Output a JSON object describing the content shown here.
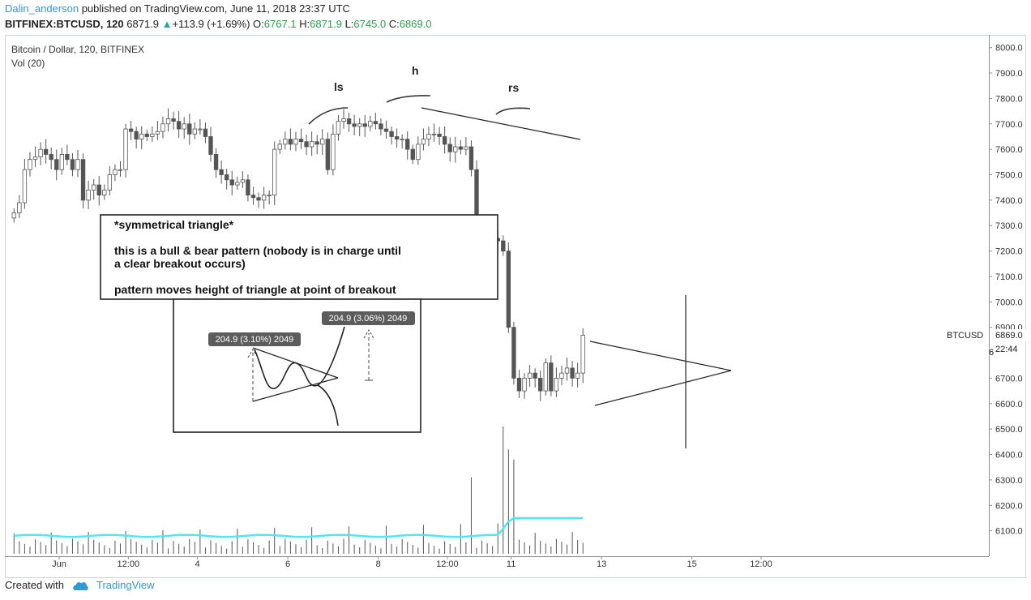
{
  "header": {
    "author": "Dalin_anderson",
    "published_text": "published on TradingView.com, June 11, 2018 23:37 UTC",
    "symbol": "BITFINEX:BTCUSD, 120",
    "last": "6871.9",
    "change_arrow": "▲",
    "change": "+113.9 (+1.69%)",
    "o_label": "O:",
    "o": "6767.1",
    "h_label": "H:",
    "h": "6871.9",
    "l_label": "L:",
    "l": "6745.0",
    "c_label": "C:",
    "c": "6869.0"
  },
  "legend": {
    "title": "Bitcoin / Dollar, 120, BITFINEX",
    "volume": "Vol (20)"
  },
  "price_axis": {
    "symbol_label": "BTCUSD",
    "last_price_tag": "6869.0",
    "countdown_tag": "22:44",
    "partial_tag": "6"
  },
  "annotations": {
    "ls": "ls",
    "h": "h",
    "rs": "rs",
    "box_title": "*symmetrical triangle*",
    "box_line1a": "this is a bull & bear pattern (nobody is in charge until",
    "box_line1b": "a clear breakout occurs)",
    "box_line2": "pattern moves height of triangle at point of breakout",
    "measure_left": "204.9 (3.10%) 2049",
    "measure_right": "204.9 (3.06%) 2049"
  },
  "footer": {
    "created_with": "Created with",
    "brand": "TradingView"
  },
  "colors": {
    "up_candle": "#ffffff",
    "down_candle": "#555555",
    "volume_ma": "#4ee8ee",
    "accent": "#2e9ad6",
    "axis_tag": "#666666"
  },
  "chart_data": {
    "type": "candlestick",
    "title": "Bitcoin / Dollar, 120, BITFINEX",
    "y_ticks": [
      8000,
      7900,
      7800,
      7700,
      7600,
      7500,
      7400,
      7300,
      7200,
      7100,
      7000,
      6900,
      6700,
      6600,
      6500,
      6400,
      6300,
      6200,
      6100
    ],
    "y_tick_labels": [
      "8000.0",
      "7900.0",
      "7800.0",
      "7700.0",
      "7600.0",
      "7500.0",
      "7400.0",
      "7300.0",
      "7200.0",
      "7100.0",
      "7000.0",
      "6900.0",
      "6700.0",
      "6600.0",
      "6500.0",
      "6400.0",
      "6300.0",
      "6200.0",
      "6100.0"
    ],
    "ylim": [
      6000,
      8050
    ],
    "x_ticks": [
      "Jun",
      "12:00",
      "4",
      "6",
      "8",
      "12:00",
      "11",
      "13",
      "15",
      "12:00"
    ],
    "x_tick_bars": [
      9,
      22,
      35,
      52,
      69,
      82,
      94,
      111,
      128,
      141
    ],
    "candles_close": [
      7350,
      7390,
      7520,
      7560,
      7570,
      7600,
      7580,
      7560,
      7520,
      7580,
      7560,
      7520,
      7560,
      7400,
      7440,
      7460,
      7420,
      7440,
      7500,
      7520,
      7520,
      7680,
      7670,
      7640,
      7660,
      7650,
      7660,
      7670,
      7700,
      7720,
      7710,
      7680,
      7700,
      7660,
      7680,
      7680,
      7650,
      7580,
      7520,
      7500,
      7480,
      7460,
      7470,
      7480,
      7420,
      7410,
      7400,
      7420,
      7420,
      7600,
      7620,
      7640,
      7620,
      7640,
      7630,
      7610,
      7630,
      7620,
      7640,
      7520,
      7660,
      7710,
      7720,
      7700,
      7690,
      7700,
      7690,
      7710,
      7700,
      7680,
      7670,
      7650,
      7640,
      7640,
      7600,
      7560,
      7620,
      7640,
      7660,
      7660,
      7650,
      7620,
      7590,
      7610,
      7600,
      7610,
      7520,
      7300,
      7280,
      7200,
      7250,
      7240,
      7200,
      6900,
      6700,
      6650,
      6700,
      6720,
      6700,
      6650,
      6760,
      6650,
      6700,
      6720,
      6740,
      6700,
      6720,
      6869
    ],
    "volume_ma_level": 6080,
    "volume_spikes": [
      {
        "bar": 86,
        "value": 6310
      },
      {
        "bar": 92,
        "value": 6510
      },
      {
        "bar": 93,
        "value": 6420
      },
      {
        "bar": 94,
        "value": 6380
      }
    ],
    "patterns": [
      {
        "name": "ls"
      },
      {
        "name": "h"
      },
      {
        "name": "rs"
      },
      {
        "name": "symmetrical triangle",
        "upper": [
          6890,
          6720
        ],
        "lower": [
          6590,
          6720
        ],
        "target": [
          7020,
          6410
        ]
      }
    ]
  }
}
